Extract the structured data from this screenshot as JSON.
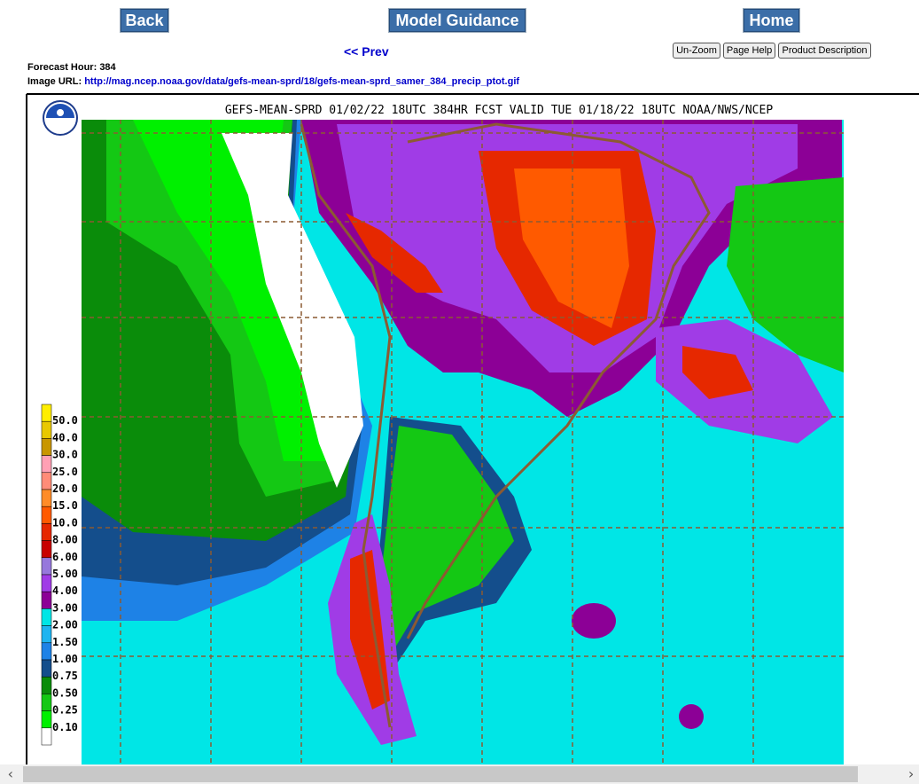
{
  "nav": {
    "back": "Back",
    "model_guidance": "Model Guidance",
    "home": "Home",
    "prev": "<< Prev",
    "unzoom": "Un-Zoom",
    "page_help": "Page Help",
    "product_description": "Product Description"
  },
  "info": {
    "forecast_hour_label": "Forecast Hour:",
    "forecast_hour": "384",
    "image_url_label": "Image URL:",
    "image_url": "http://mag.ncep.noaa.gov/data/gefs-mean-sprd/18/gefs-mean-sprd_samer_384_precip_ptot.gif"
  },
  "map": {
    "title": "GEFS-MEAN-SPRD 01/02/22 18UTC 384HR FCST VALID TUE 01/18/22 18UTC NOAA/NWS/NCEP",
    "legend": [
      {
        "label": "50.0",
        "color": "#ffee00"
      },
      {
        "label": "40.0",
        "color": "#e8c800"
      },
      {
        "label": "30.0",
        "color": "#c89600"
      },
      {
        "label": "25.0",
        "color": "#ffa0b4"
      },
      {
        "label": "20.0",
        "color": "#ff8c78"
      },
      {
        "label": "15.0",
        "color": "#ff8c28"
      },
      {
        "label": "10.0",
        "color": "#ff5a00"
      },
      {
        "label": "8.00",
        "color": "#e62800"
      },
      {
        "label": "6.00",
        "color": "#c80000"
      },
      {
        "label": "5.00",
        "color": "#9678dc"
      },
      {
        "label": "4.00",
        "color": "#a03ce6"
      },
      {
        "label": "3.00",
        "color": "#8c0096"
      },
      {
        "label": "2.00",
        "color": "#00e6e6"
      },
      {
        "label": "1.50",
        "color": "#1eb4f0"
      },
      {
        "label": "1.00",
        "color": "#1e82e6"
      },
      {
        "label": "0.75",
        "color": "#144e8c"
      },
      {
        "label": "0.50",
        "color": "#0a8c0a"
      },
      {
        "label": "0.25",
        "color": "#14c814"
      },
      {
        "label": "0.10",
        "color": "#00f000"
      }
    ]
  }
}
